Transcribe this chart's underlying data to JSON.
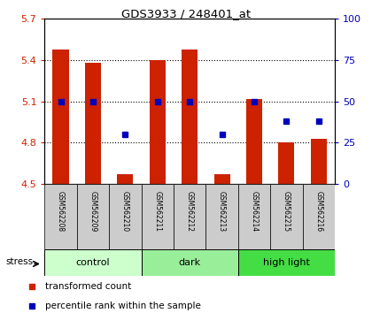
{
  "title": "GDS3933 / 248401_at",
  "samples": [
    "GSM562208",
    "GSM562209",
    "GSM562210",
    "GSM562211",
    "GSM562212",
    "GSM562213",
    "GSM562214",
    "GSM562215",
    "GSM562216"
  ],
  "groups": [
    {
      "label": "control",
      "indices": [
        0,
        1,
        2
      ],
      "color": "#ccffcc"
    },
    {
      "label": "dark",
      "indices": [
        3,
        4,
        5
      ],
      "color": "#99ee99"
    },
    {
      "label": "high light",
      "indices": [
        6,
        7,
        8
      ],
      "color": "#44dd44"
    }
  ],
  "transformed_counts": [
    5.48,
    5.38,
    4.57,
    5.4,
    5.48,
    4.57,
    5.12,
    4.8,
    4.83
  ],
  "percentile_ranks": [
    50,
    50,
    30,
    50,
    50,
    30,
    50,
    38,
    38
  ],
  "ylim": [
    4.5,
    5.7
  ],
  "y2lim": [
    0,
    100
  ],
  "yticks": [
    4.5,
    4.8,
    5.1,
    5.4,
    5.7
  ],
  "y2ticks": [
    0,
    25,
    50,
    75,
    100
  ],
  "bar_color": "#cc2200",
  "dot_color": "#0000bb",
  "bar_width": 0.5,
  "base_value": 4.5,
  "legend_items": [
    "transformed count",
    "percentile rank within the sample"
  ],
  "sample_box_color": "#cccccc",
  "group_separator_color": "#333333"
}
